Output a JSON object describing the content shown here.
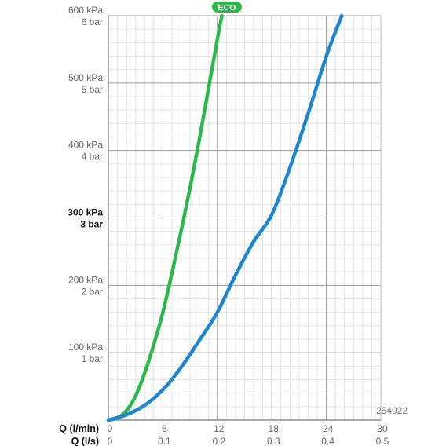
{
  "chart_data": {
    "type": "line",
    "title": "",
    "xlabel": "Q (l/min)",
    "xlabel_secondary": "Q (l/s)",
    "ylabel": "",
    "xlim": [
      0,
      30
    ],
    "ylim": [
      0,
      600
    ],
    "x_ticks": [
      0,
      6,
      12,
      18,
      24,
      30
    ],
    "x_tick_labels": [
      "0",
      "6",
      "12",
      "18",
      "24",
      "30"
    ],
    "x2_tick_labels": [
      "0",
      "0.1",
      "0.2",
      "0.3",
      "0.4",
      "0.5"
    ],
    "y_ticks": [
      {
        "value": 100,
        "kpa": "100 kPa",
        "bar": "1 bar",
        "bold": false
      },
      {
        "value": 200,
        "kpa": "200 kPa",
        "bar": "2 bar",
        "bold": false
      },
      {
        "value": 300,
        "kpa": "300 kPa",
        "bar": "3 bar",
        "bold": true
      },
      {
        "value": 400,
        "kpa": "400 kPa",
        "bar": "4 bar",
        "bold": false
      },
      {
        "value": 500,
        "kpa": "500 kPa",
        "bar": "5 bar",
        "bold": false
      },
      {
        "value": 600,
        "kpa": "600 kPa",
        "bar": "6 bar",
        "bold": false
      }
    ],
    "grid": true,
    "product_code": "254022",
    "series": [
      {
        "name": "ECO",
        "color": "#2db84d",
        "x": [
          0,
          1,
          2,
          3,
          4,
          5,
          6,
          7,
          8,
          9,
          10,
          11,
          12,
          12.5
        ],
        "y": [
          0,
          3,
          14,
          36,
          70,
          112,
          160,
          218,
          280,
          345,
          415,
          490,
          565,
          600
        ]
      },
      {
        "name": "",
        "color": "#1e86d0",
        "x": [
          0,
          2,
          4,
          6,
          8,
          10,
          12,
          14,
          16,
          18,
          20,
          22,
          24,
          25.7
        ],
        "y": [
          0,
          8,
          22,
          45,
          78,
          118,
          160,
          215,
          265,
          305,
          375,
          455,
          540,
          600
        ]
      }
    ]
  }
}
